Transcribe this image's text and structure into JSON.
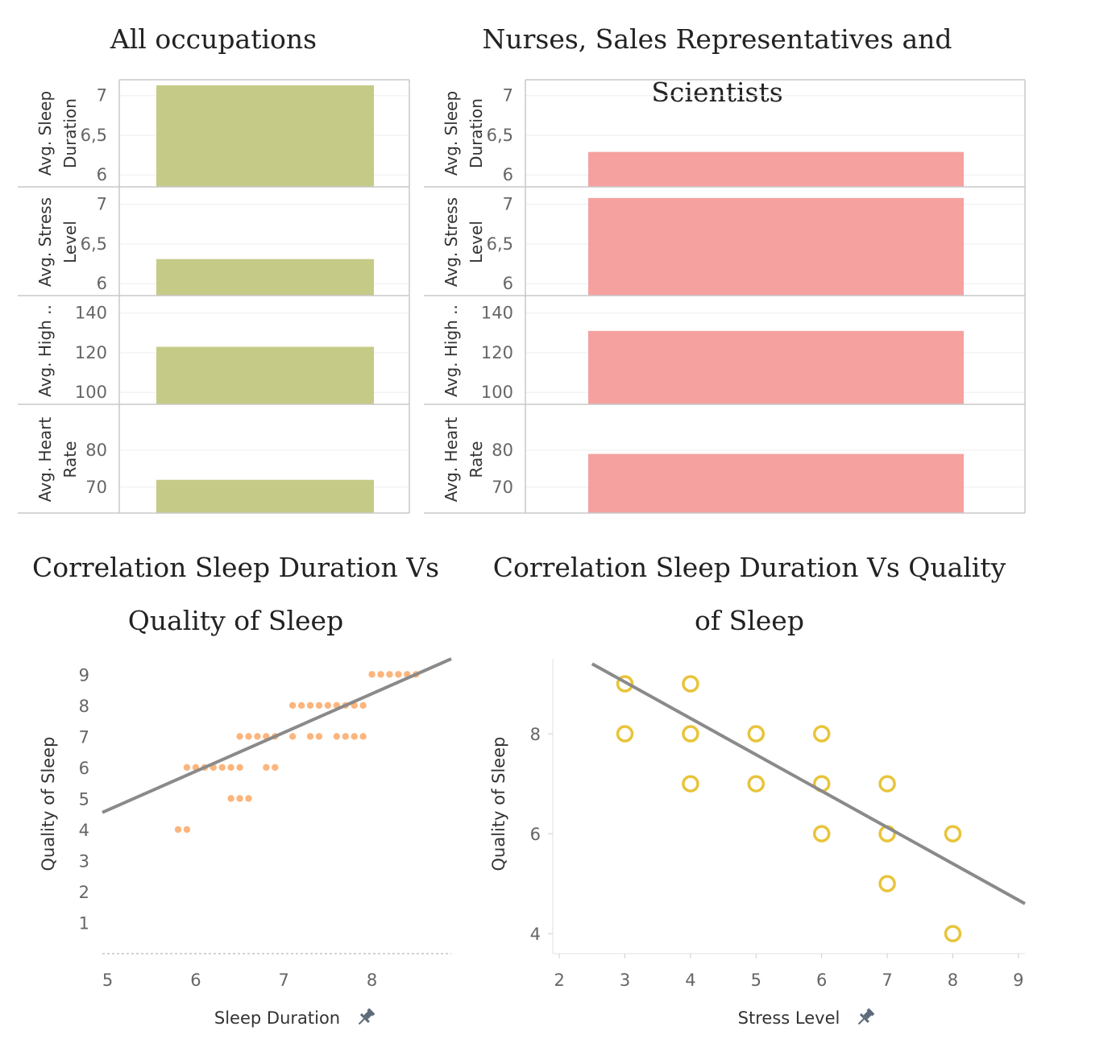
{
  "titles": {
    "all": "All occupations",
    "nurses": "Nurses, Sales Representatives and Scientists",
    "corr1": "Correlation Sleep Duration Vs Quality of Sleep",
    "corr2": "Correlation Sleep Duration Vs Quality of Sleep"
  },
  "colors": {
    "all_bar": "#c6ca87",
    "nurses_bar": "#f4a1a0",
    "scatter1_dot": "#fbb57d",
    "scatter2_ring": "#e8c43a",
    "trend": "#8a8a8a",
    "grid": "#eeeeee"
  },
  "icons": {
    "pin": "pin-icon"
  },
  "chart_data": [
    {
      "type": "bar",
      "title": "All occupations",
      "rows": [
        {
          "label": [
            "Avg. Sleep",
            "Duration"
          ],
          "value": 7.13,
          "ylim": [
            5.85,
            7.2
          ],
          "ticks": [
            6,
            6.5,
            7
          ],
          "tick_labels": [
            "6",
            "6,5",
            "7"
          ]
        },
        {
          "label": [
            "Avg. Stress",
            "Level"
          ],
          "value": 6.31,
          "ylim": [
            5.85,
            7.2
          ],
          "ticks": [
            6,
            6.5,
            7
          ],
          "tick_labels": [
            "6",
            "6,5",
            "7"
          ]
        },
        {
          "label": [
            "Avg. High .."
          ],
          "value": 123,
          "ylim": [
            94,
            148
          ],
          "ticks": [
            100,
            120,
            140
          ],
          "tick_labels": [
            "100",
            "120",
            "140"
          ]
        },
        {
          "label": [
            "Avg. Heart",
            "Rate"
          ],
          "value": 72,
          "ylim": [
            63,
            92
          ],
          "ticks": [
            70,
            80
          ],
          "tick_labels": [
            "70",
            "80"
          ]
        }
      ]
    },
    {
      "type": "bar",
      "title": "Nurses, Sales Representatives and Scientists",
      "rows": [
        {
          "label": [
            "Avg. Sleep",
            "Duration"
          ],
          "value": 6.29,
          "ylim": [
            5.85,
            7.2
          ],
          "ticks": [
            6,
            6.5,
            7
          ],
          "tick_labels": [
            "6",
            "6,5",
            "7"
          ]
        },
        {
          "label": [
            "Avg. Stress",
            "Level"
          ],
          "value": 7.08,
          "ylim": [
            5.85,
            7.2
          ],
          "ticks": [
            6,
            6.5,
            7
          ],
          "tick_labels": [
            "6",
            "6,5",
            "7"
          ]
        },
        {
          "label": [
            "Avg. High .."
          ],
          "value": 131,
          "ylim": [
            94,
            148
          ],
          "ticks": [
            100,
            120,
            140
          ],
          "tick_labels": [
            "100",
            "120",
            "140"
          ]
        },
        {
          "label": [
            "Avg. Heart",
            "Rate"
          ],
          "value": 79,
          "ylim": [
            63,
            92
          ],
          "ticks": [
            70,
            80
          ],
          "tick_labels": [
            "70",
            "80"
          ]
        }
      ]
    },
    {
      "type": "scatter",
      "title": "Correlation Sleep Duration Vs Quality of Sleep",
      "xlabel": "Sleep Duration",
      "ylabel": "Quality of Sleep",
      "xlim": [
        4.94,
        8.9
      ],
      "ylim": [
        0,
        9.5
      ],
      "xticks": [
        5,
        6,
        7,
        8
      ],
      "yticks": [
        1,
        2,
        3,
        4,
        5,
        6,
        7,
        8,
        9
      ],
      "points": [
        [
          5.8,
          4
        ],
        [
          5.9,
          4
        ],
        [
          5.9,
          6
        ],
        [
          6.0,
          6
        ],
        [
          6.1,
          6
        ],
        [
          6.2,
          6
        ],
        [
          6.3,
          6
        ],
        [
          6.4,
          6
        ],
        [
          6.5,
          6
        ],
        [
          6.4,
          5
        ],
        [
          6.5,
          5
        ],
        [
          6.6,
          5
        ],
        [
          6.5,
          7
        ],
        [
          6.6,
          7
        ],
        [
          6.7,
          7
        ],
        [
          6.8,
          7
        ],
        [
          6.9,
          7
        ],
        [
          6.8,
          6
        ],
        [
          6.9,
          6
        ],
        [
          7.1,
          7
        ],
        [
          7.3,
          7
        ],
        [
          7.4,
          7
        ],
        [
          7.6,
          7
        ],
        [
          7.7,
          7
        ],
        [
          7.8,
          7
        ],
        [
          7.9,
          7
        ],
        [
          7.1,
          8
        ],
        [
          7.2,
          8
        ],
        [
          7.3,
          8
        ],
        [
          7.4,
          8
        ],
        [
          7.5,
          8
        ],
        [
          7.6,
          8
        ],
        [
          7.7,
          8
        ],
        [
          7.8,
          8
        ],
        [
          7.9,
          8
        ],
        [
          8.0,
          9
        ],
        [
          8.1,
          9
        ],
        [
          8.2,
          9
        ],
        [
          8.3,
          9
        ],
        [
          8.4,
          9
        ],
        [
          8.5,
          9
        ]
      ],
      "trend": [
        [
          4.94,
          4.55
        ],
        [
          8.9,
          9.5
        ]
      ]
    },
    {
      "type": "scatter",
      "title": "Correlation Sleep Duration Vs Quality of Sleep",
      "xlabel": "Stress Level",
      "ylabel": "Quality of Sleep",
      "xlim": [
        1.9,
        9.1
      ],
      "ylim": [
        3.6,
        9.5
      ],
      "xticks": [
        2,
        3,
        4,
        5,
        6,
        7,
        8,
        9
      ],
      "yticks": [
        4,
        6,
        8
      ],
      "points": [
        [
          3,
          9
        ],
        [
          4,
          9
        ],
        [
          3,
          8
        ],
        [
          4,
          8
        ],
        [
          5,
          8
        ],
        [
          6,
          8
        ],
        [
          4,
          7
        ],
        [
          5,
          7
        ],
        [
          6,
          7
        ],
        [
          7,
          7
        ],
        [
          6,
          6
        ],
        [
          7,
          6
        ],
        [
          8,
          6
        ],
        [
          7,
          5
        ],
        [
          8,
          4
        ]
      ],
      "trend": [
        [
          2.5,
          9.4
        ],
        [
          9.1,
          4.6
        ]
      ]
    }
  ]
}
